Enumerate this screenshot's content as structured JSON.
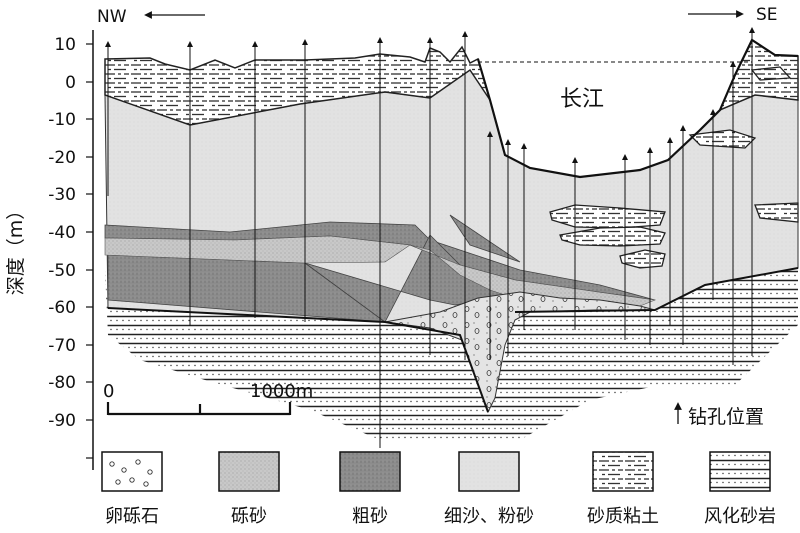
{
  "header": {
    "nw_label": "NW",
    "se_label": "SE"
  },
  "axis": {
    "label": "深度（m）",
    "ticks": [
      "10",
      "0",
      "-10",
      "-20",
      "-30",
      "-40",
      "-50",
      "-60",
      "-70",
      "-80",
      "-90"
    ]
  },
  "river_label": "长江",
  "scale": {
    "start_label": "0",
    "end_label": "1000m"
  },
  "borehole_note": "钻孔位置",
  "legend": [
    {
      "label": "卵砾石",
      "pattern": "pebble-pattern"
    },
    {
      "label": "砾砂",
      "pattern": "gravel-sand-pattern"
    },
    {
      "label": "粗砂",
      "pattern": "coarse-sand-pattern"
    },
    {
      "label": "细沙、粉砂",
      "pattern": "fine-sand-pattern"
    },
    {
      "label": "砂质粘土",
      "pattern": "sandy-clay-pattern"
    },
    {
      "label": "风化砂岩",
      "pattern": "weathered-sandstone-pattern"
    }
  ]
}
